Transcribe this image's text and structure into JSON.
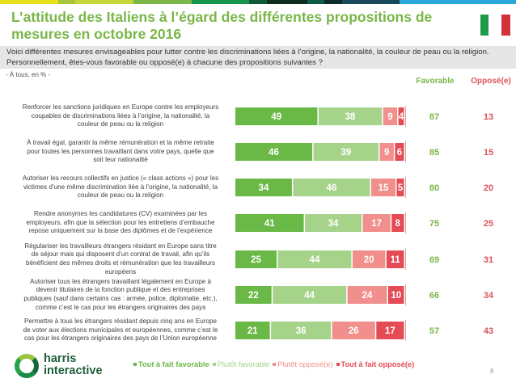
{
  "stripe_colors": [
    "#e9e01c",
    "#a8c43a",
    "#c5d637",
    "#7ab648",
    "#17974b",
    "#0f5c36",
    "#0b2d1e",
    "#0f5a46",
    "#0b2b2c",
    "#19485a",
    "#29a8d9"
  ],
  "header": {
    "title": "L’attitude des Italiens à l’égard des différentes propositions de mesures en octobre 2016",
    "flag": "italy-flag"
  },
  "question": {
    "line1": "Voici différentes mesures envisageables pour lutter contre les discriminations liées à l’origine, la nationalité, la couleur de peau ou la religion.",
    "line2": "Personnellement, êtes-vous favorable ou opposé(e) à chacune des propositions suivantes ?"
  },
  "base": "- À tous, en % -",
  "columns": {
    "favorable": "Favorable",
    "oppose": "Opposé(e)"
  },
  "colors": {
    "tout_favorable": "#6ab947",
    "plutot_favorable": "#a6d38a",
    "plutot_oppose": "#f08f8c",
    "tout_oppose": "#e44b55",
    "fav_text": "#7ab648",
    "opp_text": "#d9545a"
  },
  "chart_data": {
    "type": "bar",
    "orientation": "horizontal-stacked",
    "title": "L’attitude des Italiens à l’égard des différentes propositions de mesures en octobre 2016",
    "unit": "%",
    "xlim": [
      0,
      100
    ],
    "grid": false,
    "legend_position": "bottom",
    "categories": [
      "Renforcer les sanctions juridiques en Europe contre les employeurs coupables de discriminations liées à l’origine, la nationalité, la couleur de peau ou la religion",
      "À travail égal, garantir la même rémunération et la même retraite pour toutes les personnes travaillant dans votre pays, quelle que soit leur nationalité",
      "Autoriser les recours collectifs en justice (« class actions ») pour les victimes d’une même discrimination liée à l’origine, la nationalité, la couleur de peau ou la religion",
      "Rendre anonymes les candidatures (CV) examinées par les employeurs, afin que la sélection pour les entretiens d’embauche repose uniquement sur la base des diplômes et de l’expérience",
      "Régulariser les travailleurs étrangers résidant en Europe sans titre de séjour mais qui disposent d’un contrat de travail, afin qu’ils bénéficient des mêmes droits et rémunération que les travailleurs européens",
      "Autoriser tous les étrangers travaillant légalement en Europe à devenir titulaires de la fonction publique et des entreprises publiques (sauf dans certains cas : armée, police, diplomatie, etc.), comme c’est le cas pour les étrangers originaires des pays",
      "Permettre à tous les étrangers résidant depuis cinq ans en Europe de voter aux élections municipales et européennes, comme c’est le cas pour les étrangers originaires des pays de l’Union européenne"
    ],
    "series": [
      {
        "name": "Tout à fait favorable",
        "values": [
          49,
          46,
          34,
          41,
          25,
          22,
          21
        ]
      },
      {
        "name": "Plutôt favorable",
        "values": [
          38,
          39,
          46,
          34,
          44,
          44,
          36
        ]
      },
      {
        "name": "Plutôt opposé(e)",
        "values": [
          9,
          9,
          15,
          17,
          20,
          24,
          26
        ]
      },
      {
        "name": "Tout à fait opposé(e)",
        "values": [
          4,
          6,
          5,
          8,
          11,
          10,
          17
        ]
      }
    ],
    "totals": {
      "favorable": [
        87,
        85,
        80,
        75,
        69,
        66,
        57
      ],
      "oppose": [
        13,
        15,
        20,
        25,
        31,
        34,
        43
      ]
    }
  },
  "row_labels": [
    [
      "Renforcer les sanctions juridiques en Europe contre les employeurs",
      "coupables de discriminations liées à l’origine, la nationalité, la",
      "couleur de peau ou la religion"
    ],
    [
      "À travail égal, garantir la même rémunération et la même retraite",
      "pour toutes les personnes travaillant dans votre pays, quelle que",
      "soit leur nationalité"
    ],
    [
      "Autoriser les recours collectifs en justice (« class actions ») pour les",
      "victimes d’une même discrimination liée à l’origine, la nationalité, la",
      "couleur de peau ou la religion"
    ],
    [
      "Rendre anonymes les candidatures (CV) examinées par les",
      "employeurs, afin que la sélection pour les entretiens d’embauche",
      "repose uniquement sur la base des diplômes et de l’expérience"
    ],
    [
      "Régulariser les travailleurs étrangers résidant en Europe sans titre",
      "de séjour mais qui disposent d’un contrat de travail, afin qu’ils",
      "bénéficient des mêmes droits et rémunération que les travailleurs",
      "européens"
    ],
    [
      "Autoriser tous les étrangers travaillant légalement en Europe à",
      "devenir titulaires de la fonction publique et des entreprises",
      "publiques (sauf dans certains cas : armée, police, diplomatie, etc.),",
      "comme c’est le cas pour les étrangers originaires des pays"
    ],
    [
      "Permettre à tous les étrangers résidant depuis cinq ans en Europe",
      "de voter aux élections municipales et européennes, comme c’est le",
      "cas pour les étrangers originaires des pays de l’Union européenne"
    ]
  ],
  "legend": [
    {
      "label": "Tout à fait favorable",
      "color": "#6ab947",
      "text_color": "#6ab947"
    },
    {
      "label": "Plutôt favorable",
      "color": "#a6d38a",
      "text_color": "#a6d38a"
    },
    {
      "label": "Plutôt opposé(e)",
      "color": "#f08f8c",
      "text_color": "#f08f8c"
    },
    {
      "label": "Tout à fait opposé(e)",
      "color": "#e44b55",
      "text_color": "#e44b55"
    }
  ],
  "logo": {
    "line1": "harris",
    "line2": "interactive"
  },
  "page_number": "8"
}
